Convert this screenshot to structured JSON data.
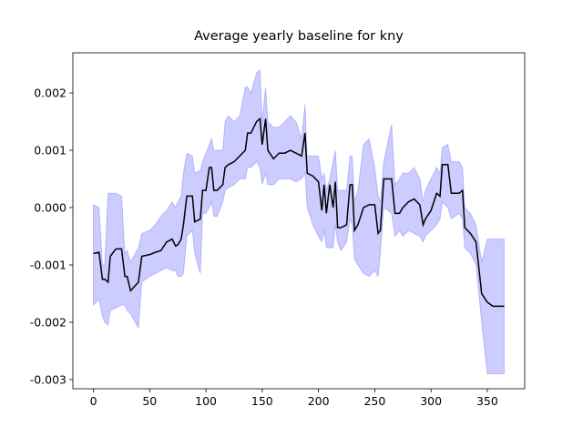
{
  "chart_data": {
    "type": "line",
    "title": "Average yearly baseline for kny",
    "x": [
      0,
      5,
      8,
      10,
      13,
      15,
      20,
      25,
      28,
      30,
      33,
      40,
      43,
      50,
      55,
      60,
      65,
      70,
      73,
      75,
      78,
      80,
      83,
      88,
      90,
      95,
      97,
      100,
      103,
      105,
      107,
      110,
      115,
      117,
      120,
      125,
      130,
      135,
      137,
      140,
      145,
      148,
      150,
      153,
      155,
      160,
      165,
      170,
      175,
      180,
      185,
      188,
      190,
      195,
      200,
      203,
      205,
      207,
      210,
      213,
      215,
      217,
      220,
      225,
      228,
      230,
      232,
      235,
      240,
      245,
      250,
      253,
      255,
      258,
      265,
      268,
      272,
      275,
      280,
      285,
      290,
      293,
      295,
      300,
      305,
      308,
      310,
      315,
      318,
      325,
      328,
      330,
      335,
      340,
      345,
      350,
      355,
      365
    ],
    "values": [
      -0.0008,
      -0.00078,
      -0.00125,
      -0.00125,
      -0.0013,
      -0.00085,
      -0.00072,
      -0.00072,
      -0.0012,
      -0.0012,
      -0.00145,
      -0.0013,
      -0.00085,
      -0.00082,
      -0.00078,
      -0.00075,
      -0.0006,
      -0.00055,
      -0.00067,
      -0.00065,
      -0.00055,
      -0.0003,
      0.0002,
      0.0002,
      -0.00025,
      -0.0002,
      0.0003,
      0.0003,
      0.0007,
      0.0007,
      0.0003,
      0.0003,
      0.0004,
      0.0007,
      0.00075,
      0.0008,
      0.0009,
      0.001,
      0.0013,
      0.0013,
      0.0015,
      0.00155,
      0.0011,
      0.00155,
      0.001,
      0.00085,
      0.00095,
      0.00095,
      0.001,
      0.00095,
      0.0009,
      0.0013,
      0.0006,
      0.00055,
      0.00045,
      -5e-05,
      0.0004,
      -0.0001,
      0.0004,
      0,
      0.00045,
      -0.00035,
      -0.00035,
      -0.0003,
      0.0004,
      0.0004,
      -0.0004,
      -0.0003,
      0,
      5e-05,
      5e-05,
      -0.00045,
      -0.0004,
      0.0005,
      0.0005,
      -0.0001,
      -0.0001,
      0,
      0.0001,
      0.00015,
      5e-05,
      -0.0003,
      -0.0002,
      -5e-05,
      0.00025,
      0.0002,
      0.00075,
      0.00075,
      0.00025,
      0.00025,
      0.0003,
      -0.00035,
      -0.00045,
      -0.0006,
      -0.0015,
      -0.00165,
      -0.00172,
      -0.00172
    ],
    "lower": [
      -0.0017,
      -0.0016,
      -0.0019,
      -0.002,
      -0.00205,
      -0.0018,
      -0.00175,
      -0.0017,
      -0.0017,
      -0.0018,
      -0.00185,
      -0.0021,
      -0.0013,
      -0.0012,
      -0.00115,
      -0.0011,
      -0.00105,
      -0.0011,
      -0.0011,
      -0.0012,
      -0.0012,
      -0.00115,
      -0.0005,
      -0.0004,
      -0.0008,
      -0.00115,
      -0.0001,
      -0.0001,
      0,
      0.0001,
      -0.00015,
      -0.00015,
      0.0001,
      0.0003,
      0.00035,
      0.0004,
      0.0005,
      0.0005,
      0.0007,
      0.0007,
      0.0008,
      0.0007,
      0.0004,
      0.0006,
      0.0004,
      0.0004,
      0.0005,
      0.0005,
      0.0005,
      0.00045,
      0.0005,
      0.0006,
      0,
      -0.0003,
      -0.0005,
      -0.0006,
      -0.0004,
      -0.0007,
      -0.0007,
      -0.0007,
      -0.0003,
      -0.0006,
      -0.00075,
      -0.0006,
      -0.0002,
      -0.0003,
      -0.0009,
      -0.001,
      -0.00115,
      -0.0012,
      -0.0011,
      -0.0012,
      -0.0008,
      0,
      -0.0001,
      -0.0005,
      -0.0004,
      -0.0005,
      -0.0004,
      -0.00045,
      -0.0005,
      -0.0006,
      -0.0005,
      -0.0004,
      -0.0003,
      -0.0002,
      0.0001,
      0,
      -0.0002,
      -0.0001,
      -0.0002,
      -0.0007,
      -0.0008,
      -0.001,
      -0.002,
      -0.0029,
      -0.0029,
      -0.0029
    ],
    "upper": [
      5e-05,
      0,
      -0.001,
      -0.001,
      0.00025,
      0.00025,
      0.00025,
      0.0002,
      -0.0008,
      -0.00075,
      -0.00095,
      -0.0007,
      -0.00045,
      -0.0004,
      -0.0003,
      -0.00015,
      -5e-05,
      0.0001,
      0,
      0.0001,
      0.0002,
      0.0006,
      0.00095,
      0.0009,
      0.0006,
      0.00065,
      0.0008,
      0.00095,
      0.0011,
      0.0012,
      0.001,
      0.001,
      0.001,
      0.0015,
      0.0016,
      0.0015,
      0.0016,
      0.0021,
      0.0021,
      0.002,
      0.00235,
      0.0024,
      0.0015,
      0.0021,
      0.0015,
      0.0014,
      0.0014,
      0.0015,
      0.0016,
      0.0015,
      0.0012,
      0.0018,
      0.0009,
      0.0009,
      0.0009,
      0.0005,
      0.0006,
      0.0003,
      0.0005,
      0.0008,
      0.001,
      0.0003,
      0.0003,
      0.0003,
      0.0009,
      0.0009,
      0.0001,
      0.0003,
      0.0011,
      0.0012,
      0.0007,
      0.0002,
      0.0001,
      0.0008,
      0.00145,
      0.0004,
      0.0005,
      0.0006,
      0.0006,
      0.0007,
      0.0005,
      0.0001,
      0.0003,
      0.0005,
      0.0007,
      0.0006,
      0.00105,
      0.0011,
      0.0008,
      0.0008,
      0.0007,
      0,
      -0.0001,
      -0.0003,
      -0.00095,
      -0.00055,
      -0.00055,
      -0.00055
    ],
    "color": "#000000",
    "band_color": "#0000ff",
    "xlim": [
      -18.25,
      383.25
    ],
    "xticks": [
      0,
      50,
      100,
      150,
      200,
      250,
      300,
      350
    ],
    "ylim": [
      -0.00316,
      0.0027
    ],
    "yticks": [
      0.002,
      0.001,
      {
        "value": 0,
        "label": "0.000"
      },
      -0.001,
      -0.002,
      -0.003
    ]
  }
}
